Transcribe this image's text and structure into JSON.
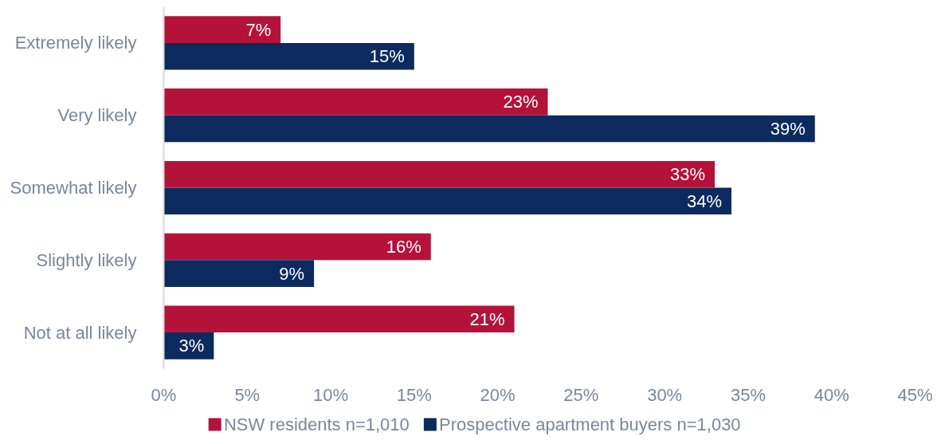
{
  "chart_data": {
    "type": "bar",
    "orientation": "horizontal",
    "categories": [
      "Extremely likely",
      "Very likely",
      "Somewhat likely",
      "Slightly likely",
      "Not at all likely"
    ],
    "series": [
      {
        "name": "NSW residents n=1,010",
        "color": "#b5123a",
        "values": [
          7,
          23,
          33,
          16,
          21
        ],
        "value_labels": [
          "7%",
          "23%",
          "33%",
          "16%",
          "21%"
        ]
      },
      {
        "name": "Prospective apartment buyers n=1,030",
        "color": "#0c2a5e",
        "values": [
          15,
          39,
          34,
          9,
          3
        ],
        "value_labels": [
          "15%",
          "39%",
          "34%",
          "9%",
          "3%"
        ]
      }
    ],
    "xlim": [
      0,
      45
    ],
    "xticks": [
      {
        "value": 0,
        "label": "0%"
      },
      {
        "value": 5,
        "label": "5%"
      },
      {
        "value": 10,
        "label": "10%"
      },
      {
        "value": 15,
        "label": "15%"
      },
      {
        "value": 20,
        "label": "20%"
      },
      {
        "value": 25,
        "label": "25%"
      },
      {
        "value": 30,
        "label": "30%"
      },
      {
        "value": 35,
        "label": "35%"
      },
      {
        "value": 40,
        "label": "40%"
      },
      {
        "value": 45,
        "label": "45%"
      }
    ],
    "grid": false,
    "legend": "bottom"
  }
}
